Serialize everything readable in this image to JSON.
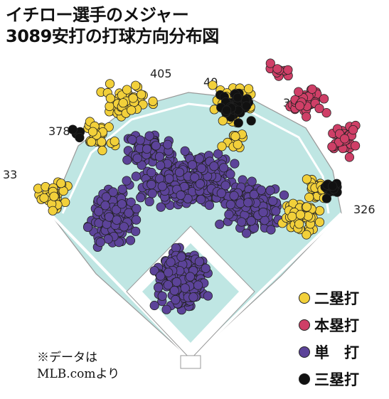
{
  "title": {
    "line1": "イチロー選手のメジャー",
    "line2": "3089安打の打球方向分布図"
  },
  "note": {
    "line1": "※データは",
    "line2": "MLB.comより"
  },
  "legend": [
    {
      "label": "二塁打",
      "color": "#f2d03a"
    },
    {
      "label": "本塁打",
      "color": "#cf3f67"
    },
    {
      "label": "単　打",
      "color": "#5c4399"
    },
    {
      "label": "三塁打",
      "color": "#111111"
    }
  ],
  "distances": [
    "405",
    "40",
    "38",
    "378",
    "33",
    "326"
  ],
  "colors": {
    "field": "#bfe6e3",
    "dirt": "#ffffff",
    "outline": "#999999"
  },
  "chart_data": {
    "type": "scatter",
    "title": "イチロー選手のメジャー 3089安打の打球方向分布図",
    "series": [
      {
        "name": "二塁打",
        "color": "#f2d03a"
      },
      {
        "name": "本塁打",
        "color": "#cf3f67"
      },
      {
        "name": "単　打",
        "color": "#5c4399"
      },
      {
        "name": "三塁打",
        "color": "#111111"
      }
    ],
    "total_hits": 3089,
    "fence_distances": [
      "405",
      "40",
      "38",
      "378",
      "33",
      "326"
    ]
  }
}
